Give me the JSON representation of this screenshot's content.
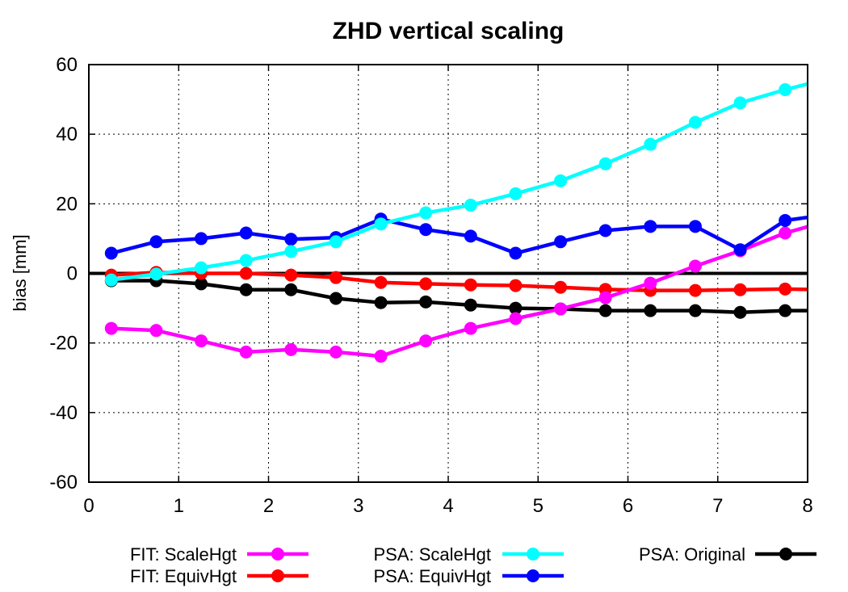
{
  "chart_data": {
    "type": "line",
    "title": "ZHD vertical scaling",
    "xlabel": "",
    "ylabel": "bias [mm]",
    "xlim": [
      0,
      8
    ],
    "ylim": [
      -60,
      60
    ],
    "xticks": [
      0,
      1,
      2,
      3,
      4,
      5,
      6,
      7,
      8
    ],
    "yticks": [
      -60,
      -40,
      -20,
      0,
      20,
      40,
      60
    ],
    "grid": true,
    "legend_position": "bottom",
    "zero_line": {
      "y": 0,
      "color": "#000000"
    },
    "x": [
      0.25,
      0.75,
      1.25,
      1.75,
      2.25,
      2.75,
      3.25,
      3.75,
      4.25,
      4.75,
      5.25,
      5.75,
      6.25,
      6.75,
      7.25,
      7.75,
      8.25
    ],
    "series": [
      {
        "name": "FIT: ScaleHgt",
        "color": "#ff00ff",
        "values": [
          -15.8,
          -16.4,
          -19.4,
          -22.6,
          -21.9,
          -22.6,
          -23.8,
          -19.4,
          -15.8,
          -13.0,
          -10.2,
          -7.0,
          -2.8,
          2.1,
          6.5,
          11.6,
          15.2
        ]
      },
      {
        "name": "FIT: EquivHgt",
        "color": "#ff0000",
        "values": [
          -0.5,
          0.3,
          0.0,
          0.0,
          -0.5,
          -1.2,
          -2.6,
          -3.0,
          -3.3,
          -3.5,
          -4.0,
          -4.6,
          -4.9,
          -4.9,
          -4.7,
          -4.5,
          -4.7
        ]
      },
      {
        "name": "PSA: ScaleHgt",
        "color": "#00ffff",
        "values": [
          -1.9,
          -0.2,
          1.6,
          3.7,
          6.3,
          9.1,
          14.2,
          17.4,
          19.6,
          22.9,
          26.6,
          31.5,
          37.1,
          43.4,
          49.0,
          52.8,
          56.1
        ]
      },
      {
        "name": "PSA: EquivHgt",
        "color": "#0000ff",
        "values": [
          5.8,
          9.1,
          10.0,
          11.6,
          9.8,
          10.3,
          15.6,
          12.6,
          10.7,
          5.8,
          9.1,
          12.3,
          13.5,
          13.5,
          6.8,
          15.2,
          17.0
        ]
      },
      {
        "name": "PSA: Original",
        "color": "#000000",
        "values": [
          -2.1,
          -2.1,
          -3.0,
          -4.7,
          -4.7,
          -7.2,
          -8.4,
          -8.2,
          -9.1,
          -10.0,
          -10.2,
          -10.7,
          -10.7,
          -10.7,
          -11.2,
          -10.7,
          -10.7
        ]
      }
    ]
  }
}
